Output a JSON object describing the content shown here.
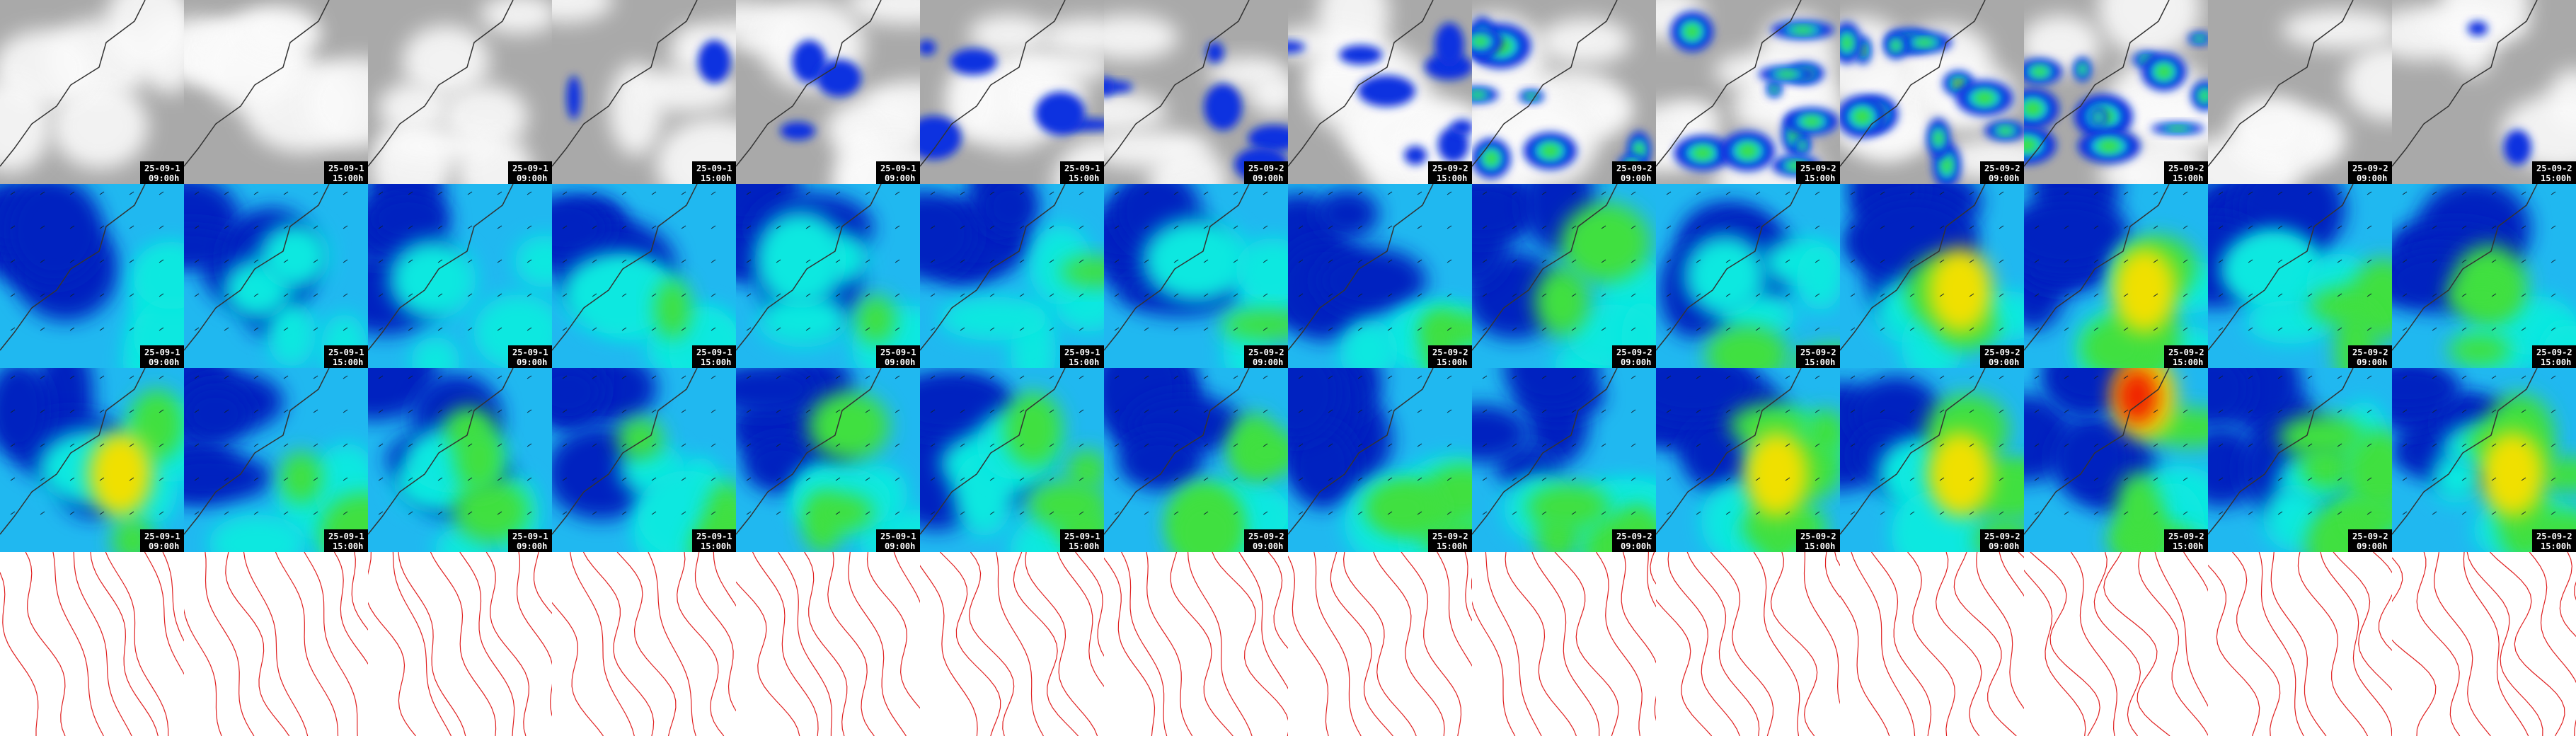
{
  "columns": [
    {
      "date": "25-09-1",
      "time": "09:00h"
    },
    {
      "date": "25-09-1",
      "time": "15:00h"
    },
    {
      "date": "25-09-1",
      "time": "09:00h"
    },
    {
      "date": "25-09-1",
      "time": "15:00h"
    },
    {
      "date": "25-09-1",
      "time": "09:00h"
    },
    {
      "date": "25-09-1",
      "time": "15:00h"
    },
    {
      "date": "25-09-2",
      "time": "09:00h"
    },
    {
      "date": "25-09-2",
      "time": "15:00h"
    },
    {
      "date": "25-09-2",
      "time": "09:00h"
    },
    {
      "date": "25-09-2",
      "time": "15:00h"
    },
    {
      "date": "25-09-2",
      "time": "09:00h"
    },
    {
      "date": "25-09-2",
      "time": "15:00h"
    },
    {
      "date": "25-09-2",
      "time": "09:00h"
    },
    {
      "date": "25-09-2",
      "time": "15:00h"
    }
  ]
}
